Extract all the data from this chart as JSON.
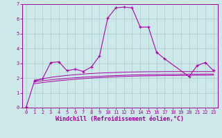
{
  "background_color": "#cce8e8",
  "grid_color": "#aacccc",
  "line_color": "#aa00aa",
  "xlim": [
    -0.5,
    23.5
  ],
  "ylim": [
    0,
    7
  ],
  "xticks": [
    0,
    1,
    2,
    3,
    4,
    5,
    6,
    7,
    8,
    9,
    10,
    11,
    12,
    13,
    14,
    15,
    16,
    17,
    18,
    19,
    20,
    21,
    22,
    23
  ],
  "yticks": [
    0,
    1,
    2,
    3,
    4,
    5,
    6,
    7
  ],
  "xlabel": "Windchill (Refroidissement éolien,°C)",
  "series": [
    {
      "x": [
        0,
        1,
        2,
        3,
        4,
        5,
        6,
        7,
        8,
        9,
        10,
        11,
        12,
        13,
        14,
        15,
        16,
        17,
        20,
        21,
        22,
        23
      ],
      "y": [
        0.05,
        1.8,
        1.95,
        3.05,
        3.1,
        2.5,
        2.6,
        2.45,
        2.75,
        3.5,
        6.05,
        6.75,
        6.8,
        6.75,
        5.45,
        5.45,
        3.75,
        3.3,
        2.1,
        2.85,
        3.05,
        2.5
      ],
      "marker": true
    },
    {
      "x": [
        1,
        2,
        3,
        4,
        5,
        6,
        7,
        8,
        9,
        10,
        11,
        12,
        13,
        14,
        15,
        16,
        17,
        18,
        19,
        20,
        21,
        22,
        23
      ],
      "y": [
        1.85,
        1.95,
        2.05,
        2.12,
        2.18,
        2.23,
        2.27,
        2.31,
        2.34,
        2.36,
        2.38,
        2.4,
        2.41,
        2.42,
        2.43,
        2.43,
        2.44,
        2.44,
        2.44,
        2.44,
        2.44,
        2.44,
        2.44
      ],
      "marker": false
    },
    {
      "x": [
        1,
        2,
        3,
        4,
        5,
        6,
        7,
        8,
        9,
        10,
        11,
        12,
        13,
        14,
        15,
        16,
        17,
        18,
        19,
        20,
        21,
        22,
        23
      ],
      "y": [
        1.75,
        1.82,
        1.88,
        1.93,
        1.98,
        2.02,
        2.06,
        2.09,
        2.12,
        2.15,
        2.17,
        2.19,
        2.21,
        2.22,
        2.23,
        2.24,
        2.25,
        2.25,
        2.25,
        2.26,
        2.26,
        2.27,
        2.27
      ],
      "marker": false
    },
    {
      "x": [
        1,
        2,
        3,
        4,
        5,
        6,
        7,
        8,
        9,
        10,
        11,
        12,
        13,
        14,
        15,
        16,
        17,
        18,
        19,
        20,
        21,
        22,
        23
      ],
      "y": [
        1.62,
        1.7,
        1.76,
        1.82,
        1.87,
        1.92,
        1.96,
        2.0,
        2.03,
        2.06,
        2.09,
        2.11,
        2.13,
        2.14,
        2.15,
        2.16,
        2.17,
        2.17,
        2.18,
        2.18,
        2.19,
        2.19,
        2.2
      ],
      "marker": false
    }
  ],
  "font_color": "#990099",
  "tick_fontsize": 5.0,
  "label_fontsize": 6.0
}
